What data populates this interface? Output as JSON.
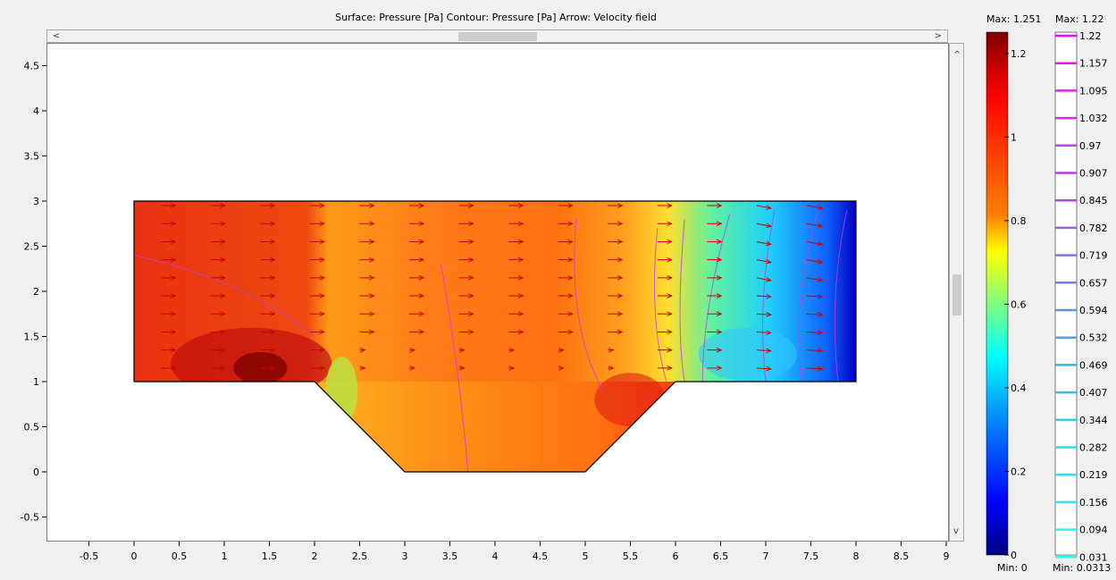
{
  "plot_title": "Surface: Pressure [Pa]   Contour: Pressure [Pa]   Arrow: Velocity field",
  "scroll_left_glyph": "<",
  "scroll_right_glyph": ">",
  "scroll_up_glyph": "^",
  "scroll_down_glyph": "v",
  "x_ticks": [
    "-0.5",
    "0",
    "0.5",
    "1",
    "1.5",
    "2",
    "2.5",
    "3",
    "3.5",
    "4",
    "4.5",
    "5",
    "5.5",
    "6",
    "6.5",
    "7",
    "7.5",
    "8",
    "8.5",
    "9"
  ],
  "y_ticks": [
    "4.5",
    "4",
    "3.5",
    "3",
    "2.5",
    "2",
    "1.5",
    "1",
    "0.5",
    "0",
    "-0.5"
  ],
  "surface_legend": {
    "max_label": "Max: 1.251",
    "min_label": "Min: 0",
    "ticks": [
      "1.2",
      "1",
      "0.8",
      "0.6",
      "0.4",
      "0.2",
      "0"
    ],
    "colors": [
      "#800000",
      "#ff0000",
      "#ff8000",
      "#ffff00",
      "#80ff80",
      "#00ffff",
      "#0080ff",
      "#0000ff",
      "#000080"
    ]
  },
  "contour_legend": {
    "max_label": "Max: 1.22",
    "min_label": "Min: 0.0313",
    "levels": [
      "1.22",
      "1.157",
      "1.095",
      "1.032",
      "0.97",
      "0.907",
      "0.845",
      "0.782",
      "0.719",
      "0.657",
      "0.594",
      "0.532",
      "0.469",
      "0.407",
      "0.344",
      "0.282",
      "0.219",
      "0.156",
      "0.094",
      "0.031"
    ],
    "colors": [
      "#ff00ff",
      "#f010f0",
      "#e020e8",
      "#d030e0",
      "#c040e0",
      "#b040e0",
      "#a050e0",
      "#9060e0",
      "#8070e0",
      "#7080e0",
      "#6090e0",
      "#50a0e8",
      "#40b0f0",
      "#30c0f0",
      "#30d0f0",
      "#30d8f0",
      "#30e0f0",
      "#30e8f0",
      "#30f0f0",
      "#30f8f8"
    ]
  },
  "colors": {
    "arrow": "#cc0000",
    "boundary": "#000000"
  }
}
